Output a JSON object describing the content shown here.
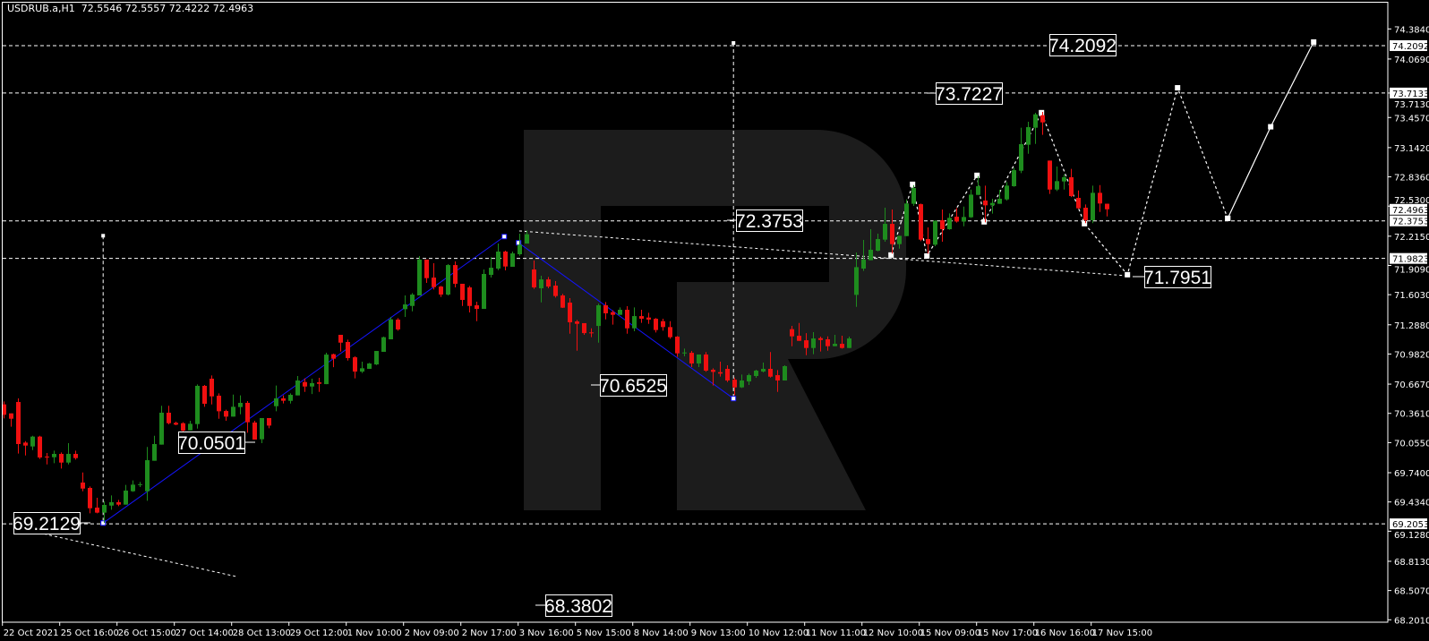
{
  "header": {
    "title": "USDRUB.a,H1  72.5546 72.5557 72.4222 72.4963"
  },
  "colors": {
    "background": "#000000",
    "bull": "#1e8c1e",
    "bear": "#f01010",
    "zigzag": "#1414ff",
    "annotation": "#ffffff",
    "watermark": "#1c1c1c",
    "axis": "#ffffff"
  },
  "watermark": {
    "logo": "R"
  },
  "chart_data": {
    "type": "candlestick",
    "symbol": "USDRUB.a",
    "timeframe": "H1",
    "last_bar": {
      "open": 72.5546,
      "high": 72.5557,
      "low": 72.4222,
      "close": 72.4963
    },
    "ylim": [
      68.201,
      74.384
    ],
    "grid": false,
    "y_ticks": [
      "74.3840",
      "74.0690",
      "73.7130",
      "73.4570",
      "73.1420",
      "72.8360",
      "72.5300",
      "72.2150",
      "71.9090",
      "71.6030",
      "71.2880",
      "70.9820",
      "70.6670",
      "70.3610",
      "70.0550",
      "69.7400",
      "69.4340",
      "69.1280",
      "68.8130",
      "68.5070",
      "68.2010"
    ],
    "x_ticks": [
      "22 Oct 2021",
      "25 Oct 16:00",
      "26 Oct 15:00",
      "27 Oct 14:00",
      "28 Oct 13:00",
      "29 Oct 12:00",
      "1 Nov 10:00",
      "2 Nov 09:00",
      "2 Nov 17:00",
      "3 Nov 16:00",
      "5 Nov 15:00",
      "8 Nov 14:00",
      "9 Nov 13:00",
      "10 Nov 12:00",
      "11 Nov 11:00",
      "12 Nov 10:00",
      "15 Nov 09:00",
      "15 Nov 17:00",
      "16 Nov 16:00",
      "17 Nov 15:00"
    ],
    "axis_price_markers": [
      "74.2092",
      "73.7133",
      "72.4963",
      "72.3753",
      "71.9823",
      "69.2053"
    ],
    "horizontal_levels": [
      74.2092,
      73.7133,
      72.3753,
      71.9823,
      69.2053
    ],
    "price_labels": [
      "69.2129",
      "70.0501",
      "70.6525",
      "68.3802",
      "72.3753",
      "73.7227",
      "74.2092",
      "71.7951"
    ],
    "candles_ohlc": [
      [
        70.455,
        70.486,
        70.308,
        70.346
      ],
      [
        70.361,
        70.361,
        70.221,
        70.305
      ],
      [
        70.48,
        70.518,
        69.94,
        70.04
      ],
      [
        70.055,
        70.071,
        69.921,
        70.024
      ],
      [
        70.015,
        70.127,
        69.977,
        70.118
      ],
      [
        70.118,
        70.127,
        69.884,
        69.899
      ],
      [
        69.909,
        69.946,
        69.827,
        69.902
      ],
      [
        69.902,
        69.971,
        69.84,
        69.937
      ],
      [
        69.937,
        69.952,
        69.784,
        69.846
      ],
      [
        69.846,
        70.049,
        69.827,
        69.937
      ],
      [
        69.937,
        69.971,
        69.877,
        69.893
      ],
      [
        69.637,
        69.743,
        69.546,
        69.574
      ],
      [
        69.581,
        69.596,
        69.315,
        69.368
      ],
      [
        69.375,
        69.478,
        69.315,
        69.322
      ],
      [
        69.322,
        69.44,
        69.215,
        69.403
      ],
      [
        69.396,
        69.503,
        69.353,
        69.431
      ],
      [
        69.431,
        69.456,
        69.39,
        69.406
      ],
      [
        69.406,
        69.612,
        69.406,
        69.553
      ],
      [
        69.546,
        69.659,
        69.54,
        69.615
      ],
      [
        69.618,
        69.643,
        69.59,
        69.62
      ],
      [
        69.546,
        70.009,
        69.446,
        69.871
      ],
      [
        69.865,
        70.127,
        69.865,
        70.04
      ],
      [
        70.034,
        70.44,
        70.034,
        70.368
      ],
      [
        70.368,
        70.44,
        70.246,
        70.258
      ],
      [
        70.262,
        70.274,
        70.237,
        70.243
      ],
      [
        70.258,
        70.268,
        70.065,
        70.18
      ],
      [
        70.183,
        70.283,
        70.183,
        70.252
      ],
      [
        70.249,
        70.664,
        70.202,
        70.649
      ],
      [
        70.649,
        70.658,
        70.43,
        70.461
      ],
      [
        70.724,
        70.758,
        70.455,
        70.539
      ],
      [
        70.546,
        70.571,
        70.305,
        70.383
      ],
      [
        70.386,
        70.399,
        70.283,
        70.327
      ],
      [
        70.327,
        70.558,
        70.327,
        70.43
      ],
      [
        70.427,
        70.549,
        70.352,
        70.471
      ],
      [
        70.471,
        70.49,
        70.158,
        70.268
      ],
      [
        70.265,
        70.283,
        70.087,
        70.087
      ],
      [
        70.09,
        70.312,
        70.049,
        70.312
      ],
      [
        70.312,
        70.312,
        70.205,
        70.233
      ],
      [
        70.436,
        70.652,
        70.383,
        70.518
      ],
      [
        70.518,
        70.549,
        70.465,
        70.493
      ],
      [
        70.492,
        70.57,
        70.464,
        70.555
      ],
      [
        70.549,
        70.752,
        70.549,
        70.705
      ],
      [
        70.689,
        70.727,
        70.586,
        70.642
      ],
      [
        70.642,
        70.724,
        70.564,
        70.677
      ],
      [
        70.686,
        70.733,
        70.586,
        70.67
      ],
      [
        70.667,
        70.995,
        70.667,
        70.976
      ],
      [
        70.98,
        70.986,
        70.845,
        70.933
      ],
      [
        71.183,
        71.183,
        71.008,
        71.101
      ],
      [
        71.108,
        71.133,
        70.914,
        70.939
      ],
      [
        70.948,
        70.958,
        70.727,
        70.798
      ],
      [
        70.798,
        70.902,
        70.783,
        70.833
      ],
      [
        70.827,
        70.889,
        70.827,
        70.883
      ],
      [
        70.873,
        71.014,
        70.867,
        71.014
      ],
      [
        71.005,
        71.164,
        71.005,
        71.158
      ],
      [
        71.136,
        71.37,
        71.136,
        71.345
      ],
      [
        71.342,
        71.357,
        71.226,
        71.239
      ],
      [
        71.451,
        71.595,
        71.37,
        71.501
      ],
      [
        71.485,
        71.62,
        71.429,
        71.604
      ],
      [
        71.595,
        72.007,
        71.595,
        71.97
      ],
      [
        71.97,
        71.97,
        71.726,
        71.776
      ],
      [
        71.782,
        71.932,
        71.657,
        71.682
      ],
      [
        71.688,
        71.695,
        71.579,
        71.604
      ],
      [
        71.604,
        71.923,
        71.595,
        71.913
      ],
      [
        71.913,
        71.951,
        71.679,
        71.717
      ],
      [
        71.717,
        71.717,
        71.485,
        71.548
      ],
      [
        71.679,
        71.695,
        71.417,
        71.485
      ],
      [
        71.492,
        71.529,
        71.326,
        71.454
      ],
      [
        71.454,
        71.867,
        71.454,
        71.82
      ],
      [
        71.81,
        71.995,
        71.782,
        71.885
      ],
      [
        71.876,
        72.138,
        71.86,
        72.054
      ],
      [
        72.054,
        72.063,
        71.857,
        71.898
      ],
      [
        71.895,
        72.054,
        71.895,
        72.035
      ],
      [
        72.026,
        72.241,
        72.01,
        72.126
      ],
      [
        72.138,
        72.276,
        72.138,
        72.235
      ],
      [
        71.867,
        71.96,
        71.664,
        71.679
      ],
      [
        71.67,
        71.801,
        71.523,
        71.763
      ],
      [
        71.763,
        71.788,
        71.67,
        71.688
      ],
      [
        71.698,
        71.745,
        71.573,
        71.589
      ],
      [
        71.595,
        71.611,
        71.464,
        71.467
      ],
      [
        71.52,
        71.567,
        71.195,
        71.314
      ],
      [
        71.323,
        71.339,
        71.017,
        71.298
      ],
      [
        71.305,
        71.305,
        71.183,
        71.201
      ],
      [
        71.208,
        71.251,
        71.158,
        71.201
      ],
      [
        71.276,
        71.508,
        71.101,
        71.492
      ],
      [
        71.492,
        71.526,
        71.345,
        71.408
      ],
      [
        71.42,
        71.439,
        71.289,
        71.392
      ],
      [
        71.392,
        71.47,
        71.392,
        71.445
      ],
      [
        71.445,
        71.483,
        71.195,
        71.251
      ],
      [
        71.251,
        71.47,
        71.22,
        71.379
      ],
      [
        71.379,
        71.445,
        71.308,
        71.351
      ],
      [
        71.364,
        71.414,
        71.298,
        71.342
      ],
      [
        71.351,
        71.358,
        71.208,
        71.233
      ],
      [
        71.326,
        71.351,
        71.226,
        71.264
      ],
      [
        71.264,
        71.326,
        71.142,
        71.158
      ],
      [
        71.164,
        71.17,
        70.952,
        70.989
      ],
      [
        70.995,
        71.039,
        70.958,
        70.998
      ],
      [
        70.995,
        71.014,
        70.846,
        70.883
      ],
      [
        70.883,
        70.977,
        70.846,
        70.977
      ],
      [
        70.977,
        71.002,
        70.796,
        70.808
      ],
      [
        70.817,
        70.833,
        70.652,
        70.795
      ],
      [
        70.792,
        70.902,
        70.746,
        70.777
      ],
      [
        70.827,
        70.864,
        70.689,
        70.705
      ],
      [
        70.714,
        70.736,
        70.55,
        70.633
      ],
      [
        70.633,
        70.767,
        70.627,
        70.705
      ],
      [
        70.695,
        70.777,
        70.658,
        70.761
      ],
      [
        70.752,
        70.817,
        70.733,
        70.808
      ],
      [
        70.799,
        70.892,
        70.789,
        70.827
      ],
      [
        70.827,
        71.002,
        70.736,
        70.745
      ],
      [
        70.761,
        70.814,
        70.586,
        70.705
      ],
      [
        70.705,
        70.864,
        70.705,
        70.855
      ],
      [
        71.242,
        71.276,
        71.064,
        71.167
      ],
      [
        71.173,
        71.307,
        71.12,
        71.12
      ],
      [
        71.126,
        71.201,
        70.97,
        71.045
      ],
      [
        71.045,
        71.211,
        70.98,
        71.145
      ],
      [
        71.148,
        71.164,
        71.008,
        71.129
      ],
      [
        71.136,
        71.167,
        71.017,
        71.064
      ],
      [
        71.064,
        71.183,
        71.064,
        71.089
      ],
      [
        71.089,
        71.173,
        71.039,
        71.045
      ],
      [
        71.045,
        71.164,
        71.045,
        71.145
      ],
      [
        71.601,
        72.045,
        71.476,
        71.891
      ],
      [
        71.876,
        72.176,
        71.851,
        71.97
      ],
      [
        71.964,
        72.288,
        71.964,
        72.073
      ],
      [
        72.063,
        72.241,
        72.057,
        72.185
      ],
      [
        72.179,
        72.513,
        72.157,
        72.344
      ],
      [
        72.344,
        72.494,
        72.032,
        72.132
      ],
      [
        72.132,
        72.219,
        72.085,
        72.219
      ],
      [
        72.216,
        72.6,
        72.216,
        72.557
      ],
      [
        72.554,
        72.75,
        72.532,
        72.719
      ],
      [
        72.55,
        72.557,
        72.163,
        72.179
      ],
      [
        72.185,
        72.307,
        72.032,
        72.132
      ],
      [
        72.126,
        72.382,
        72.11,
        72.376
      ],
      [
        72.382,
        72.494,
        72.157,
        72.288
      ],
      [
        72.288,
        72.454,
        72.282,
        72.407
      ],
      [
        72.419,
        72.51,
        72.357,
        72.369
      ],
      [
        72.369,
        72.525,
        72.319,
        72.416
      ],
      [
        72.413,
        72.703,
        72.407,
        72.65
      ],
      [
        72.647,
        72.844,
        72.647,
        72.738
      ],
      [
        72.588,
        72.744,
        72.36,
        72.538
      ],
      [
        72.538,
        72.607,
        72.451,
        72.563
      ],
      [
        72.554,
        72.7,
        72.554,
        72.607
      ],
      [
        72.6,
        72.782,
        72.588,
        72.744
      ],
      [
        72.738,
        72.931,
        72.732,
        72.906
      ],
      [
        72.9,
        73.35,
        72.875,
        73.178
      ],
      [
        73.172,
        73.412,
        73.078,
        73.356
      ],
      [
        73.35,
        73.506,
        73.181,
        73.49
      ],
      [
        73.481,
        73.515,
        73.275,
        73.406
      ],
      [
        73.006,
        73.006,
        72.657,
        72.703
      ],
      [
        72.703,
        72.944,
        72.688,
        72.791
      ],
      [
        72.788,
        72.86,
        72.703,
        72.832
      ],
      [
        72.832,
        72.919,
        72.625,
        72.635
      ],
      [
        72.616,
        72.694,
        72.5,
        72.507
      ],
      [
        72.513,
        72.547,
        72.351,
        72.382
      ],
      [
        72.382,
        72.744,
        72.351,
        72.669
      ],
      [
        72.669,
        72.75,
        72.469,
        72.557
      ],
      [
        72.5546,
        72.5557,
        72.4222,
        72.4963
      ]
    ],
    "zigzag_lines": [
      [
        [
          13.9,
          69.213
        ],
        [
          69.9,
          72.211
        ]
      ],
      [
        [
          71.9,
          72.146
        ],
        [
          101.9,
          70.516
        ]
      ]
    ],
    "forecast_dotted_path": [
      [
        123.9,
        72.018
      ],
      [
        126.9,
        72.758
      ],
      [
        128.9,
        72.008
      ],
      [
        135.9,
        72.852
      ],
      [
        136.9,
        72.365
      ],
      [
        144.9,
        73.508
      ],
      [
        150.9,
        72.346
      ],
      [
        156.9,
        71.812
      ],
      [
        163.9,
        73.768
      ],
      [
        170.9,
        72.402
      ]
    ],
    "forecast_solid_path": [
      [
        170.9,
        72.402
      ],
      [
        176.9,
        73.36
      ],
      [
        182.9,
        74.247
      ]
    ],
    "trendlines_dotted": [
      [
        [
          72,
          72.27
        ],
        [
          157,
          71.8
        ]
      ],
      [
        [
          2,
          69.16
        ],
        [
          32.7,
          68.65
        ]
      ]
    ],
    "vertical_dotted": [
      [
        13.9,
        72.22,
        69.213
      ],
      [
        101.9,
        74.237,
        70.516
      ]
    ]
  }
}
